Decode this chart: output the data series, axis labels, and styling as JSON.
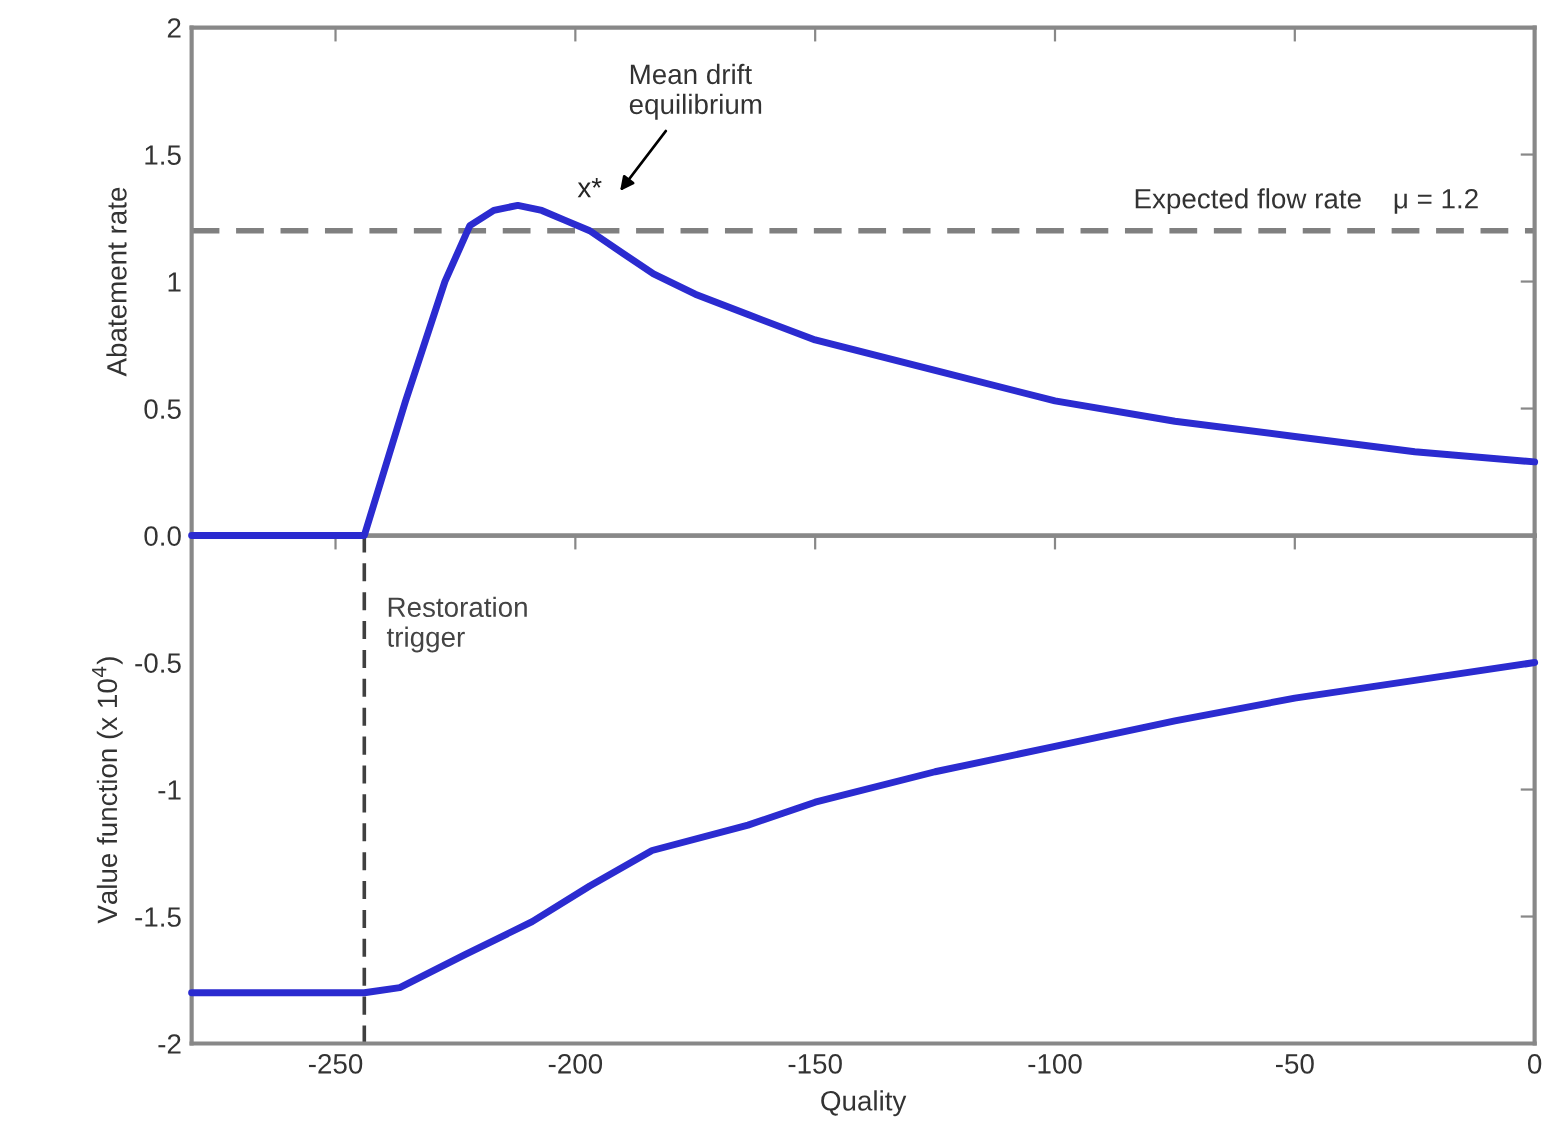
{
  "chart_data": [
    {
      "type": "line",
      "ylabel": "Abatement rate",
      "x": [
        -280,
        -244,
        -235.4,
        -227.2,
        -222,
        -217,
        -212,
        -207,
        -202,
        -197,
        -190,
        -183.7,
        -175,
        -164,
        -150,
        -125,
        -100,
        -75,
        -50,
        -25,
        0
      ],
      "series": [
        {
          "color": "#2b2bd0",
          "values": [
            0,
            0,
            0.53,
            1.0,
            1.22,
            1.28,
            1.3,
            1.28,
            1.24,
            1.2,
            1.11,
            1.03,
            0.95,
            0.87,
            0.77,
            0.65,
            0.53,
            0.45,
            0.39,
            0.33,
            0.29
          ]
        }
      ],
      "xlim": [
        -280,
        0
      ],
      "xticks": [
        {
          "value": -250,
          "label": null
        },
        {
          "value": -200,
          "label": null
        },
        {
          "value": -150,
          "label": null
        },
        {
          "value": -100,
          "label": null
        },
        {
          "value": -50,
          "label": null
        },
        {
          "value": 0,
          "label": null
        }
      ],
      "ylim": [
        0,
        2
      ],
      "yticks": [
        {
          "value": 0,
          "label": "0.0"
        },
        0.5,
        1,
        1.5,
        2
      ],
      "tick_labels": "y",
      "line_style": "solid",
      "marker": "none",
      "grid": false,
      "ref_lines": [
        {
          "axis": "y",
          "value": 1.2,
          "label": "Expected flow rate    μ = 1.2",
          "color": "#808080",
          "line_style": "dashed"
        }
      ],
      "annotations": [
        {
          "text": "x*",
          "x": -197,
          "y": 1.2
        },
        "Mean drift\nequilibrium"
      ]
    },
    {
      "type": "line",
      "xlabel": "Quality",
      "ylabel": "Value function (x 10$^{4}$)",
      "x": [
        -280,
        -244,
        -236.6,
        -223,
        -209,
        -197,
        -184,
        -164,
        -150,
        -125,
        -100,
        -75,
        -50,
        -25,
        0
      ],
      "series": [
        {
          "color": "#2b2bd0",
          "values": [
            -1.8,
            -1.8,
            -1.78,
            -1.65,
            -1.52,
            -1.38,
            -1.24,
            -1.14,
            -1.05,
            -0.93,
            -0.83,
            -0.73,
            -0.64,
            -0.57,
            -0.5
          ]
        }
      ],
      "xlim": [
        -280,
        0
      ],
      "xticks": [
        -250,
        -200,
        -150,
        -100,
        -50,
        0
      ],
      "ylim": [
        -2,
        0
      ],
      "yticks": [
        -2,
        -1.5,
        -1,
        -0.5,
        {
          "value": 0,
          "label": null
        }
      ],
      "line_style": "solid",
      "marker": "none",
      "grid": false,
      "ref_lines": [
        {
          "axis": "x",
          "value": -244,
          "label": "Restoration\ntrigger",
          "color": "#404040",
          "line_style": "dashed"
        }
      ]
    }
  ]
}
